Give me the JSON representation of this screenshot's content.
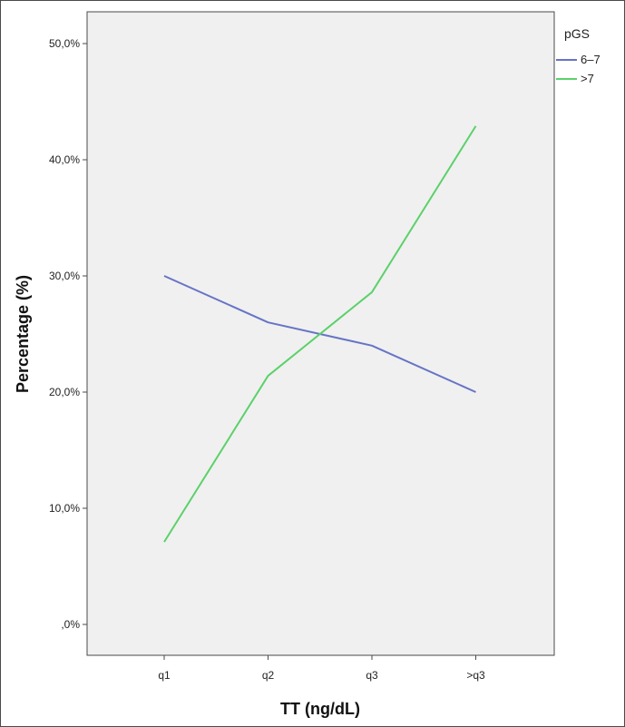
{
  "chart_data": {
    "type": "line",
    "title": "",
    "xlabel": "TT (ng/dL)",
    "ylabel": "Percentage (%)",
    "categories": [
      "q1",
      "q2",
      "q3",
      ">q3"
    ],
    "ylim": [
      0,
      50
    ],
    "yticks": [
      0,
      10,
      20,
      30,
      40,
      50
    ],
    "ytick_labels": [
      ",0%",
      "10,0%",
      "20,0%",
      "30,0%",
      "40,0%",
      "50,0%"
    ],
    "grid": false,
    "legend": {
      "title": "pGS",
      "placement": "top-right",
      "entries": [
        "6–7",
        ">7"
      ]
    },
    "series": [
      {
        "name": "6–7",
        "color": "#6674c6",
        "values": [
          30.0,
          26.0,
          24.0,
          20.0
        ]
      },
      {
        "name": ">7",
        "color": "#5bd16a",
        "values": [
          7.1,
          21.4,
          28.6,
          42.9
        ]
      }
    ]
  }
}
